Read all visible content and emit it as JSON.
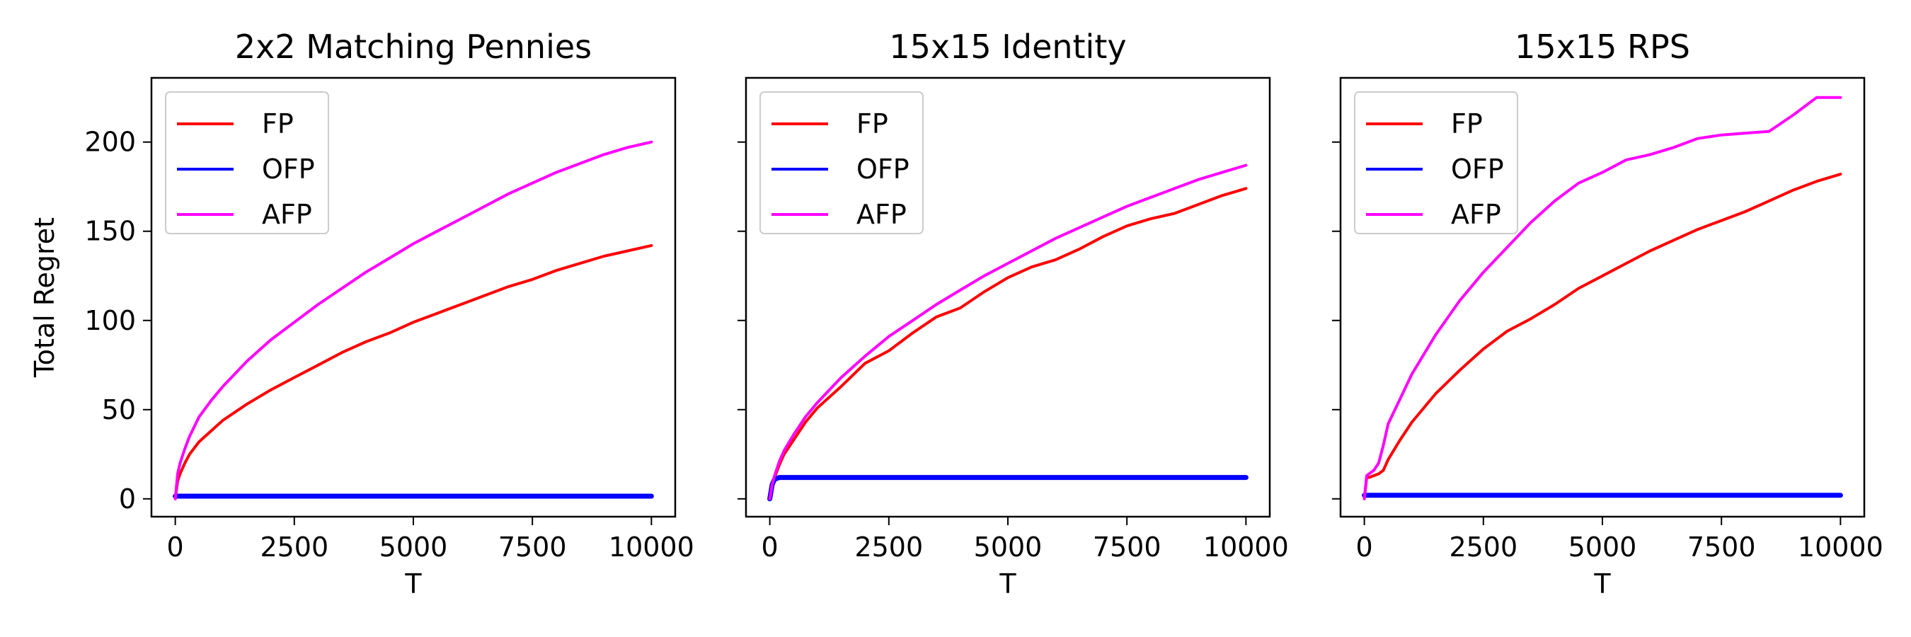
{
  "figure": {
    "ylabel": "Total Regret"
  },
  "chart_data": [
    {
      "type": "line",
      "title": "2x2 Matching Pennies",
      "xlabel": "T",
      "ylabel": "Total Regret",
      "xlim": [
        -500,
        10500
      ],
      "ylim": [
        -10,
        236
      ],
      "xticks": [
        0,
        2500,
        5000,
        7500,
        10000
      ],
      "xtick_labels": [
        "0",
        "2500",
        "5000",
        "7500",
        "10000"
      ],
      "yticks": [
        0,
        50,
        100,
        150,
        200
      ],
      "ytick_labels": [
        "0",
        "50",
        "100",
        "150",
        "200"
      ],
      "legend_position": "upper-left",
      "x": [
        0,
        50,
        100,
        200,
        300,
        500,
        750,
        1000,
        1500,
        2000,
        2500,
        3000,
        3500,
        4000,
        4500,
        5000,
        5500,
        6000,
        6500,
        7000,
        7500,
        8000,
        8500,
        9000,
        9500,
        10000
      ],
      "series": [
        {
          "name": "FP",
          "color": "#ff0000",
          "values": [
            0,
            10,
            14,
            20,
            25,
            32,
            38,
            44,
            53,
            61,
            68,
            75,
            82,
            88,
            93,
            99,
            104,
            109,
            114,
            119,
            123,
            128,
            132,
            136,
            139,
            142
          ]
        },
        {
          "name": "OFP",
          "color": "#0000ff",
          "values": [
            1.5,
            1.5,
            1.5,
            1.5,
            1.5,
            1.5,
            1.5,
            1.5,
            1.5,
            1.5,
            1.5,
            1.5,
            1.5,
            1.5,
            1.5,
            1.5,
            1.5,
            1.5,
            1.5,
            1.5,
            1.5,
            1.5,
            1.5,
            1.5,
            1.5,
            1.5
          ]
        },
        {
          "name": "AFP",
          "color": "#ff00ff",
          "values": [
            0,
            14,
            20,
            28,
            35,
            46,
            55,
            63,
            77,
            89,
            99,
            109,
            118,
            127,
            135,
            143,
            150,
            157,
            164,
            171,
            177,
            183,
            188,
            193,
            197,
            200
          ]
        }
      ]
    },
    {
      "type": "line",
      "title": "15x15 Identity",
      "xlabel": "T",
      "ylabel": "",
      "xlim": [
        -500,
        10500
      ],
      "ylim": [
        -10,
        236
      ],
      "xticks": [
        0,
        2500,
        5000,
        7500,
        10000
      ],
      "xtick_labels": [
        "0",
        "2500",
        "5000",
        "7500",
        "10000"
      ],
      "yticks": [
        0,
        50,
        100,
        150,
        200
      ],
      "ytick_labels": [
        "",
        "",
        "",
        "",
        ""
      ],
      "legend_position": "upper-left",
      "x": [
        0,
        50,
        100,
        200,
        300,
        500,
        750,
        1000,
        1500,
        2000,
        2500,
        3000,
        3500,
        4000,
        4500,
        5000,
        5500,
        6000,
        6500,
        7000,
        7500,
        8000,
        8500,
        9000,
        9500,
        10000
      ],
      "series": [
        {
          "name": "FP",
          "color": "#ff0000",
          "values": [
            0,
            7,
            12,
            19,
            25,
            33,
            43,
            51,
            63,
            76,
            83,
            93,
            102,
            107,
            116,
            124,
            130,
            134,
            140,
            147,
            153,
            157,
            160,
            165,
            170,
            174
          ]
        },
        {
          "name": "OFP",
          "color": "#0000ff",
          "values": [
            0,
            8,
            11,
            12,
            12,
            12,
            12,
            12,
            12,
            12,
            12,
            12,
            12,
            12,
            12,
            12,
            12,
            12,
            12,
            12,
            12,
            12,
            12,
            12,
            12,
            12
          ]
        },
        {
          "name": "AFP",
          "color": "#ff00ff",
          "values": [
            0,
            8,
            13,
            21,
            27,
            36,
            46,
            54,
            68,
            80,
            91,
            100,
            109,
            117,
            125,
            132,
            139,
            146,
            152,
            158,
            164,
            169,
            174,
            179,
            183,
            187
          ]
        }
      ]
    },
    {
      "type": "line",
      "title": "15x15 RPS",
      "xlabel": "T",
      "ylabel": "",
      "xlim": [
        -500,
        10500
      ],
      "ylim": [
        -10,
        236
      ],
      "xticks": [
        0,
        2500,
        5000,
        7500,
        10000
      ],
      "xtick_labels": [
        "0",
        "2500",
        "5000",
        "7500",
        "10000"
      ],
      "yticks": [
        0,
        50,
        100,
        150,
        200
      ],
      "ytick_labels": [
        "",
        "",
        "",
        "",
        ""
      ],
      "legend_position": "upper-left",
      "x": [
        0,
        50,
        100,
        200,
        300,
        400,
        500,
        750,
        1000,
        1500,
        2000,
        2500,
        3000,
        3500,
        4000,
        4500,
        5000,
        5500,
        6000,
        6500,
        7000,
        7500,
        8000,
        8500,
        9000,
        9500,
        10000
      ],
      "series": [
        {
          "name": "FP",
          "color": "#ff0000",
          "values": [
            0,
            12,
            12,
            13,
            14,
            16,
            22,
            33,
            43,
            59,
            72,
            84,
            94,
            101,
            109,
            118,
            125,
            132,
            139,
            145,
            151,
            156,
            161,
            167,
            173,
            178,
            182
          ]
        },
        {
          "name": "OFP",
          "color": "#0000ff",
          "values": [
            2,
            2,
            2,
            2,
            2,
            2,
            2,
            2,
            2,
            2,
            2,
            2,
            2,
            2,
            2,
            2,
            2,
            2,
            2,
            2,
            2,
            2,
            2,
            2,
            2,
            2,
            2
          ]
        },
        {
          "name": "AFP",
          "color": "#ff00ff",
          "values": [
            0,
            13,
            14,
            16,
            20,
            30,
            42,
            56,
            70,
            92,
            111,
            127,
            141,
            155,
            167,
            177,
            183,
            190,
            193,
            197,
            202,
            204,
            205,
            206,
            215,
            225,
            225
          ]
        }
      ]
    }
  ]
}
